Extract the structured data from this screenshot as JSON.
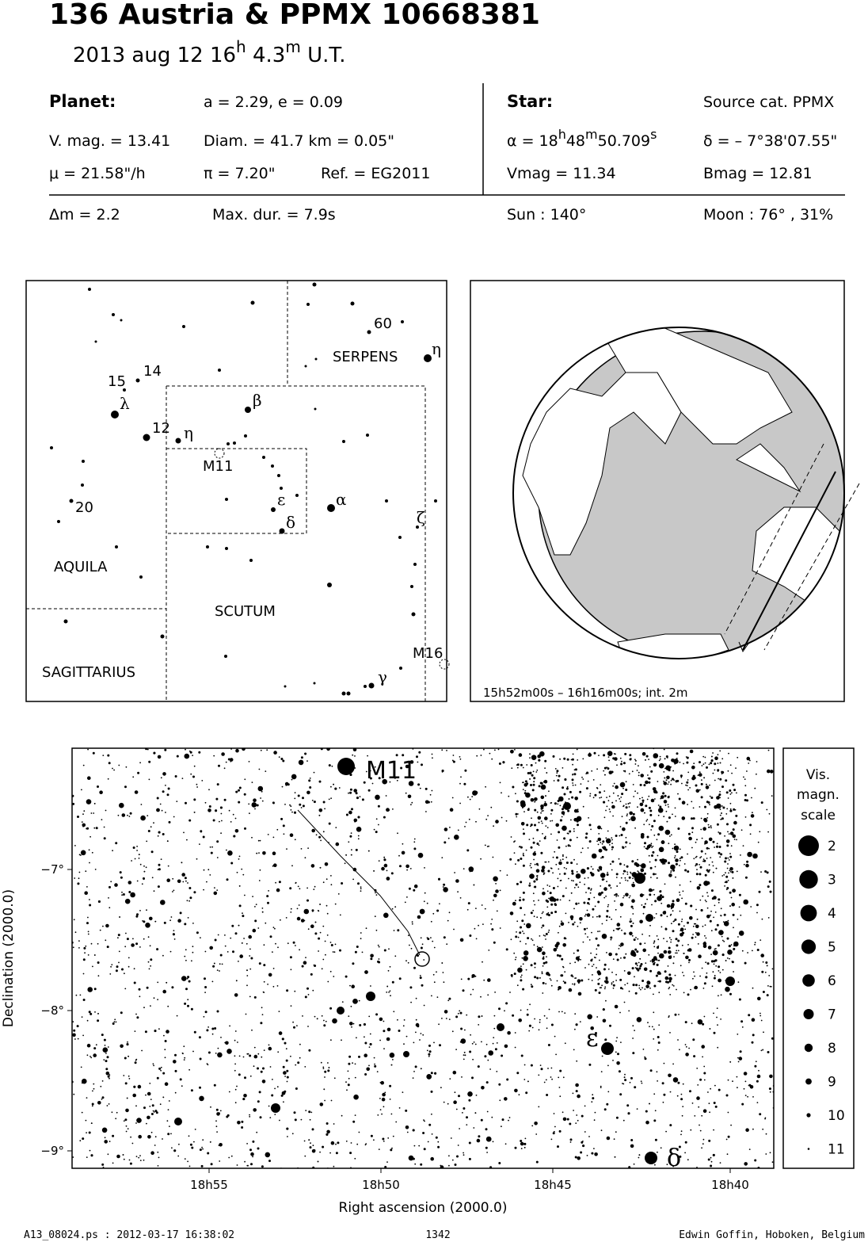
{
  "header": {
    "title": "136 Austria  &  PPMX 10668381",
    "date": "2013 aug 12  16",
    "date_h": "h",
    "date_min": " 4.3",
    "date_m": "m",
    "date_ut": " U.T."
  },
  "planet": {
    "heading": "Planet:",
    "orbit": "a = 2.29, e = 0.09",
    "vmag": "V. mag. = 13.41",
    "diam": "Diam. = 41.7 km = 0.05\"",
    "mu": "μ =  21.58\"/h",
    "pi": "π =  7.20\"",
    "ref": "Ref. = EG2011"
  },
  "star": {
    "heading": "Star:",
    "source": "Source cat.  PPMX",
    "ra": [
      "α = 18",
      "h",
      "48",
      "m",
      "50.709",
      "s"
    ],
    "dec": "δ = – 7°38'07.55\"",
    "vmag": "Vmag = 11.34",
    "bmag": "Bmag = 12.81"
  },
  "event": {
    "dmag": "Δm = 2.2",
    "maxdur": "Max. dur. = 7.9s",
    "sun": "Sun : 140°",
    "moon": "Moon :  76° , 31%"
  },
  "finder": {
    "labels": [
      "60",
      "η",
      "SERPENS",
      "15",
      "14",
      "λ",
      "12",
      "η",
      "β",
      "M11",
      "ε",
      "α",
      "δ",
      "20",
      "ζ",
      "AQUILA",
      "SCUTUM",
      "SAGITTARIUS",
      "M16",
      "γ"
    ]
  },
  "globe": {
    "caption": "15h52m00s – 16h16m00s; int.  2m"
  },
  "field": {
    "labels": [
      "M11",
      "ε",
      "δ"
    ],
    "dec_ticks": [
      "−7°",
      "−8°",
      "−9°"
    ],
    "ra_ticks": [
      "18h55",
      "18h50",
      "18h45",
      "18h40"
    ],
    "ylabel": "Declination (2000.0)",
    "xlabel": "Right ascension (2000.0)"
  },
  "scale": {
    "title": [
      "Vis.",
      "magn.",
      "scale"
    ],
    "mags": [
      2,
      3,
      4,
      5,
      6,
      7,
      8,
      9,
      10,
      11
    ]
  },
  "footer": {
    "file": "A13_08024.ps : 2012-03-17 16:38:02",
    "page": "1342",
    "author": "Edwin Goffin, Hoboken, Belgium"
  }
}
